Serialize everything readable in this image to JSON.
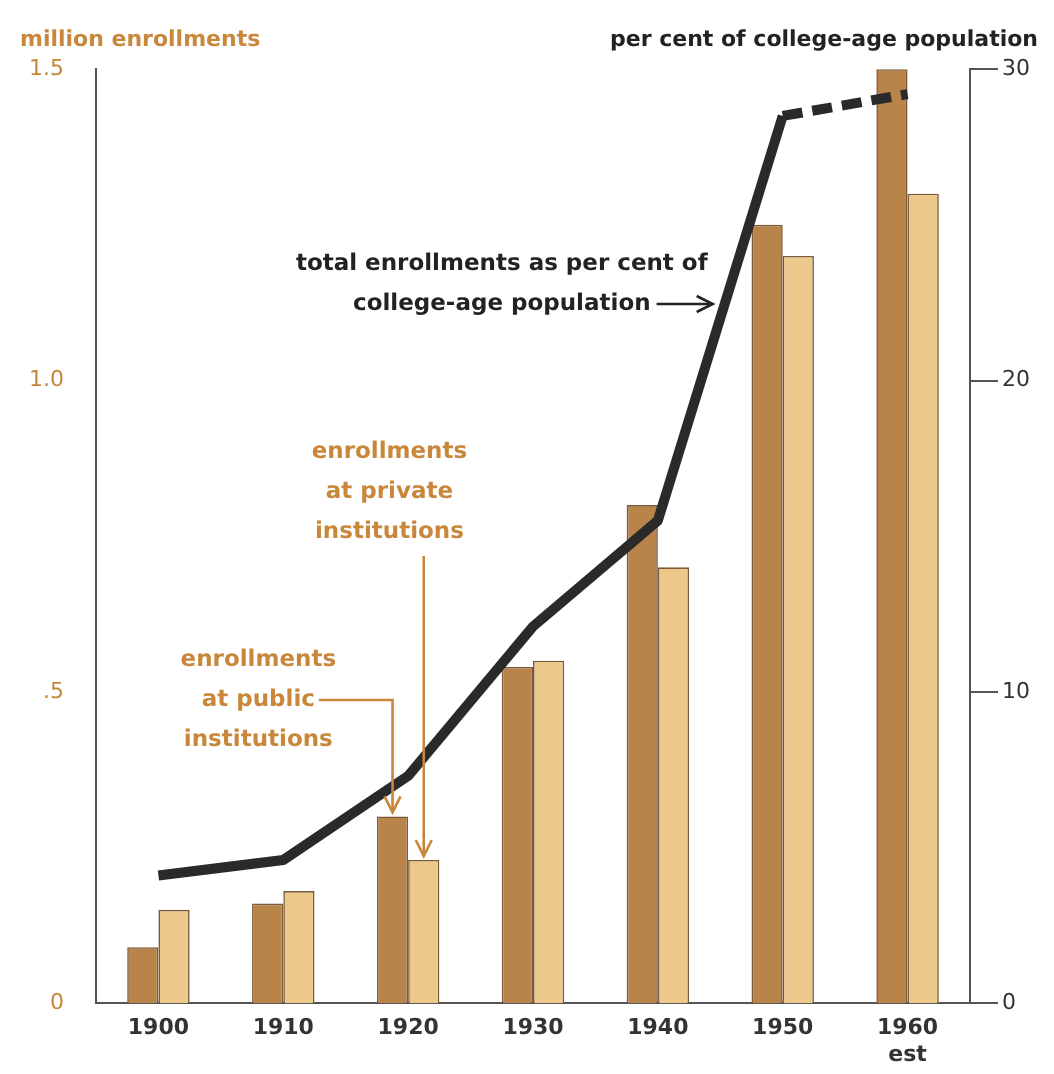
{
  "chart_data": {
    "type": "bar",
    "ylabel": "million enrollments",
    "y2label": "per cent of college-age population",
    "categories": [
      "1900",
      "1910",
      "1920",
      "1930",
      "1940",
      "1950",
      "1960 est"
    ],
    "series": [
      {
        "name": "enrollments at public institutions",
        "color": "#b8844a",
        "values": [
          0.09,
          0.16,
          0.3,
          0.54,
          0.8,
          1.25,
          1.5
        ]
      },
      {
        "name": "enrollments at private institutions",
        "color": "#ecc98a",
        "values": [
          0.15,
          0.18,
          0.23,
          0.55,
          0.7,
          1.2,
          1.3
        ]
      },
      {
        "type": "line",
        "axis": "y2",
        "name": "total enrollments as per cent of college-age population",
        "color": "#2a2a2a",
        "line_style": "solid",
        "values": [
          4.1,
          4.6,
          7.3,
          12.1,
          15.5,
          28.5,
          null
        ]
      },
      {
        "type": "line",
        "axis": "y2",
        "color": "#2a2a2a",
        "line_style": "dashed",
        "values": [
          null,
          null,
          null,
          null,
          null,
          28.5,
          29.2
        ]
      }
    ],
    "ylim": [
      0,
      1.5
    ],
    "yticks": [
      0,
      {
        "value": 0.5,
        "label": ".5"
      },
      {
        "value": 1,
        "label": "1.0"
      },
      1.5
    ],
    "y2lim": [
      0,
      30
    ],
    "y2ticks": [
      0,
      10,
      20,
      30
    ],
    "grid": false,
    "legend": false,
    "marker": "none"
  }
}
